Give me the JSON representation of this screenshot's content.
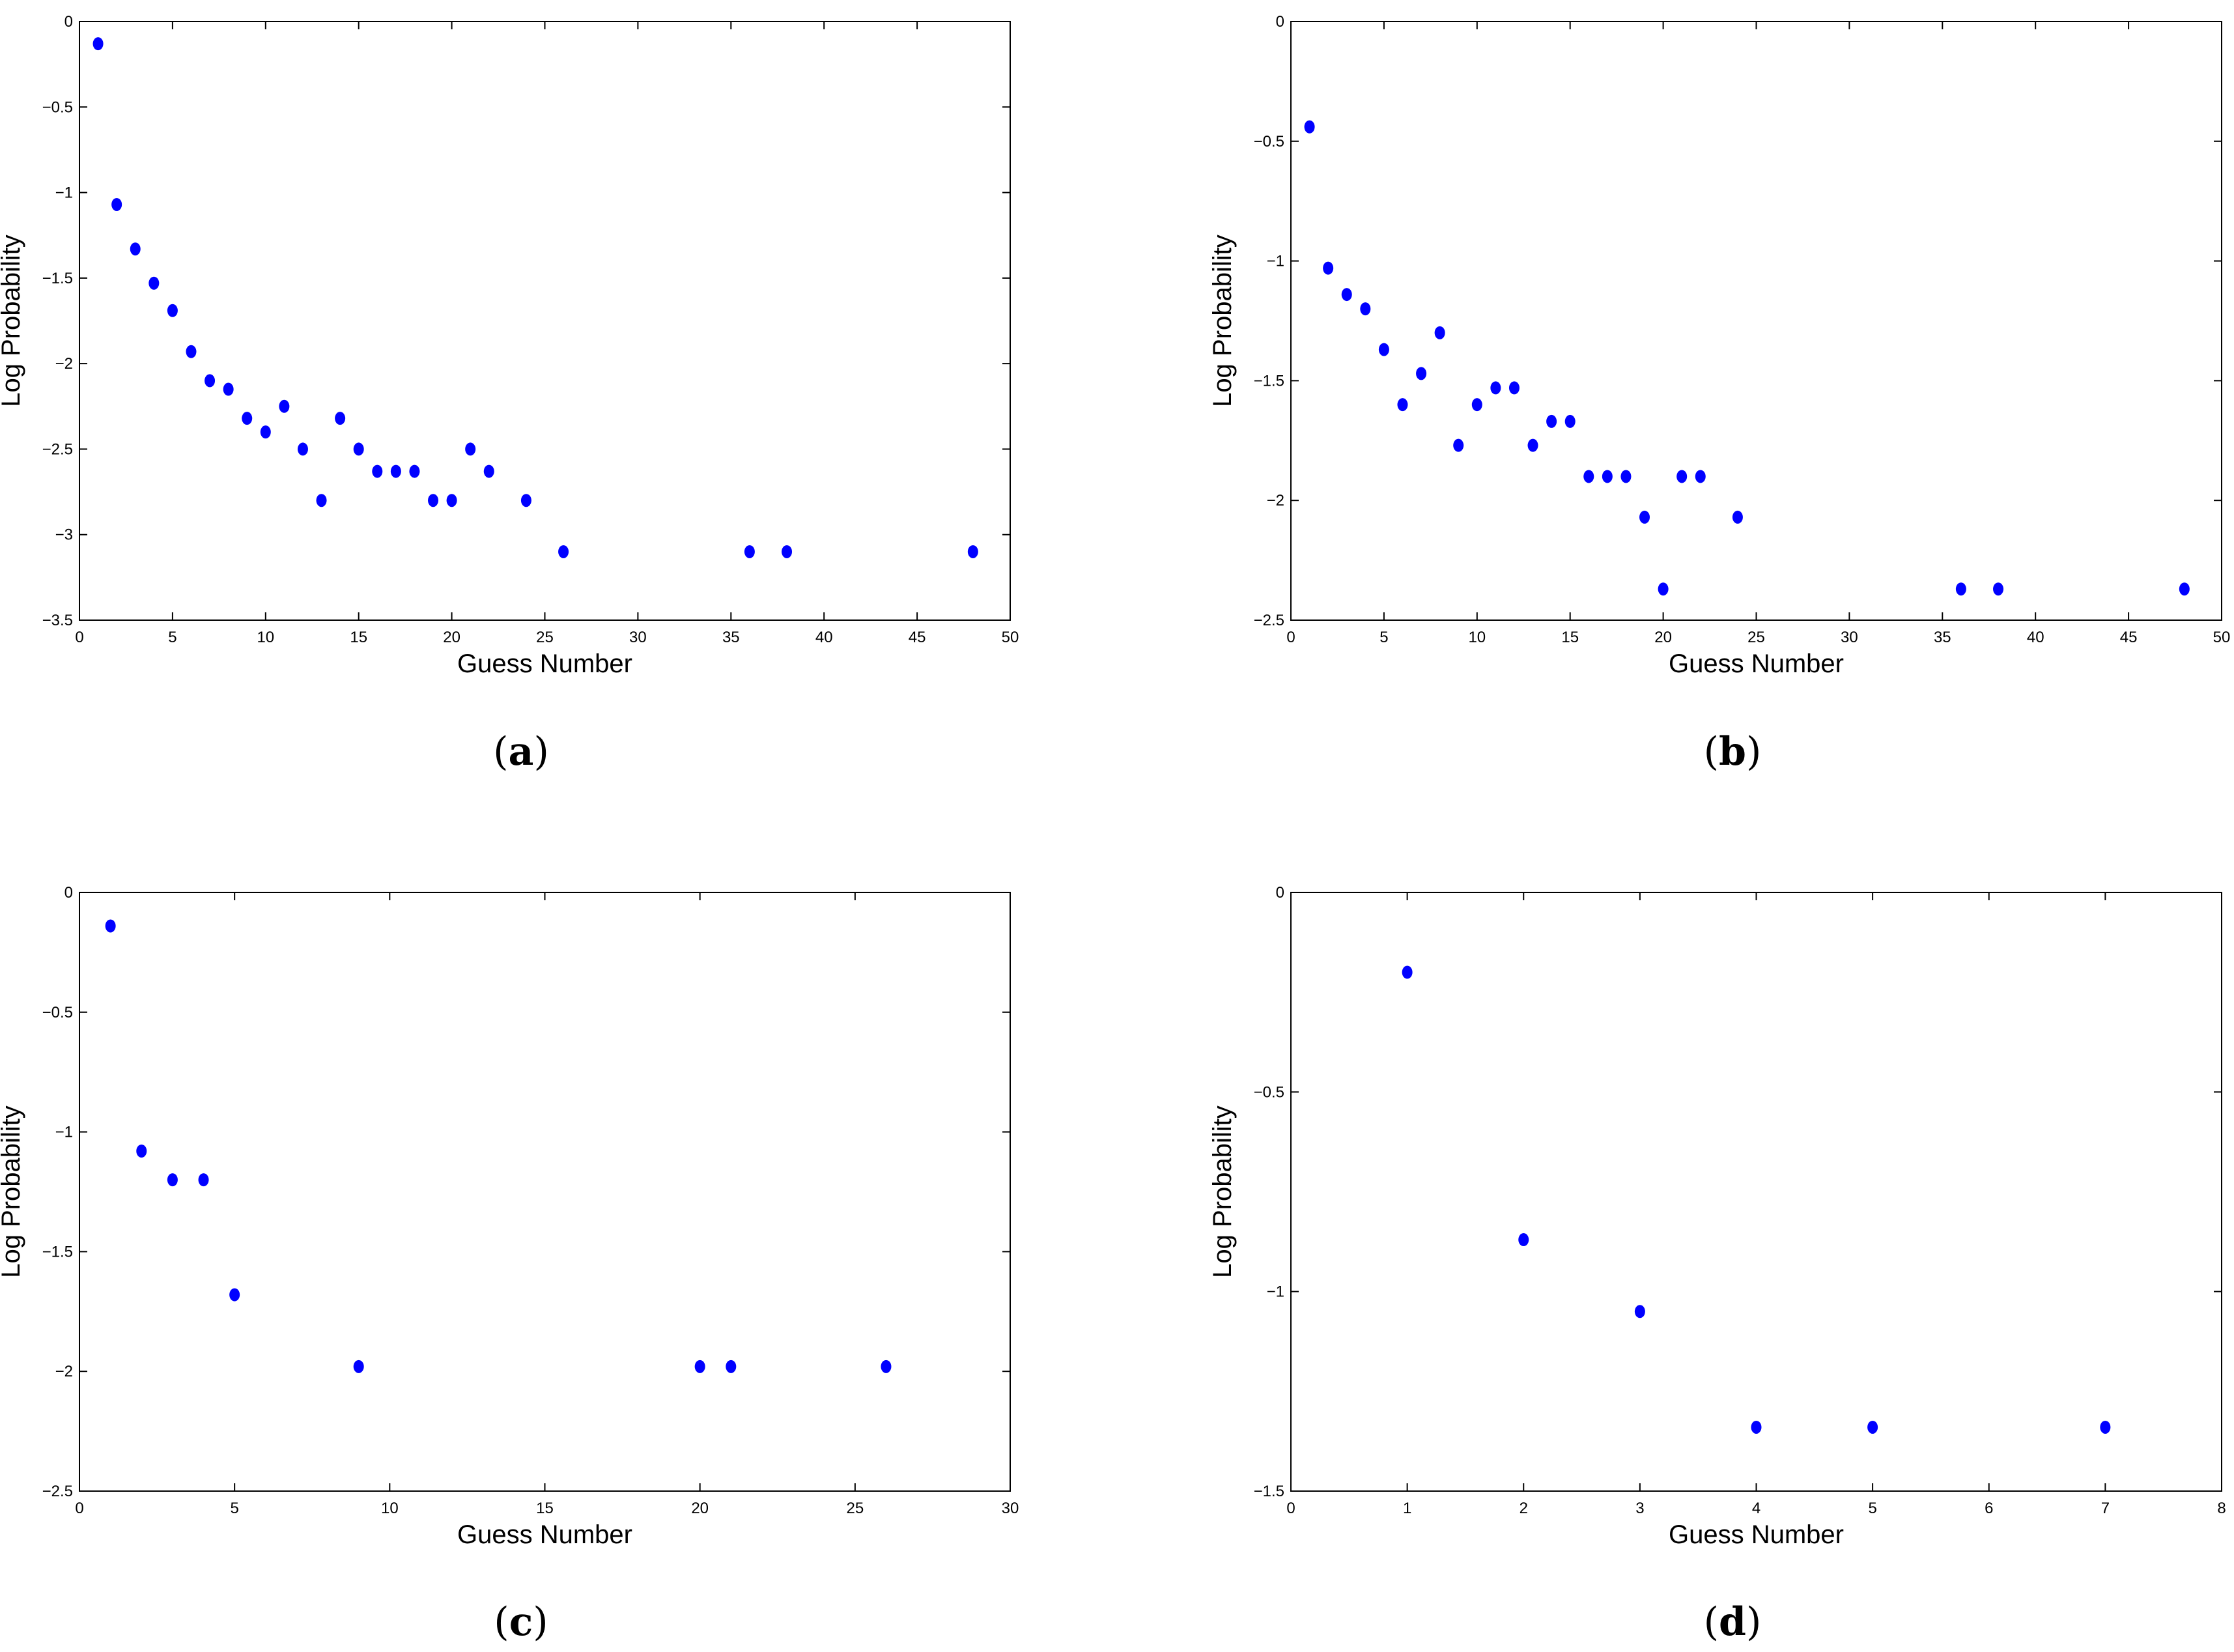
{
  "colors": {
    "marker": "#0000ff",
    "axis": "#000000",
    "background": "#ffffff"
  },
  "chart_data": [
    {
      "type": "scatter",
      "panel": "a",
      "caption": {
        "open": "(",
        "letter": "a",
        "close": ")"
      },
      "xlabel": "Guess Number",
      "ylabel": "Log Probability",
      "xlim": [
        0,
        50
      ],
      "ylim": [
        -3.5,
        0
      ],
      "xticks": [
        0,
        5,
        10,
        15,
        20,
        25,
        30,
        35,
        40,
        45,
        50
      ],
      "yticks": [
        0,
        -0.5,
        -1,
        -1.5,
        -2,
        -2.5,
        -3,
        -3.5
      ],
      "x": [
        1,
        2,
        3,
        4,
        5,
        6,
        7,
        8,
        9,
        10,
        11,
        12,
        13,
        14,
        15,
        16,
        17,
        18,
        19,
        20,
        21,
        22,
        24,
        26,
        36,
        38,
        48
      ],
      "y": [
        -0.13,
        -1.07,
        -1.33,
        -1.53,
        -1.69,
        -1.93,
        -2.1,
        -2.15,
        -2.32,
        -2.4,
        -2.25,
        -2.5,
        -2.8,
        -2.32,
        -2.5,
        -2.63,
        -2.63,
        -2.63,
        -2.8,
        -2.8,
        -2.5,
        -2.63,
        -2.8,
        -3.1,
        -3.1,
        -3.1,
        -3.1
      ]
    },
    {
      "type": "scatter",
      "panel": "b",
      "caption": {
        "open": "(",
        "letter": "b",
        "close": ")"
      },
      "xlabel": "Guess Number",
      "ylabel": "Log Probability",
      "xlim": [
        0,
        50
      ],
      "ylim": [
        -2.5,
        0
      ],
      "xticks": [
        0,
        5,
        10,
        15,
        20,
        25,
        30,
        35,
        40,
        45,
        50
      ],
      "yticks": [
        0,
        -0.5,
        -1,
        -1.5,
        -2,
        -2.5
      ],
      "x": [
        1,
        2,
        3,
        4,
        5,
        6,
        7,
        8,
        9,
        10,
        11,
        12,
        13,
        14,
        15,
        16,
        17,
        18,
        19,
        20,
        21,
        22,
        24,
        36,
        38,
        48
      ],
      "y": [
        -0.44,
        -1.03,
        -1.14,
        -1.2,
        -1.37,
        -1.6,
        -1.47,
        -1.3,
        -1.77,
        -1.6,
        -1.53,
        -1.53,
        -1.77,
        -1.67,
        -1.67,
        -1.9,
        -1.9,
        -1.9,
        -2.07,
        -2.37,
        -1.9,
        -1.9,
        -2.07,
        -2.37,
        -2.37,
        -2.37
      ]
    },
    {
      "type": "scatter",
      "panel": "c",
      "caption": {
        "open": "(",
        "letter": "c",
        "close": ")"
      },
      "xlabel": "Guess Number",
      "ylabel": "Log Probability",
      "xlim": [
        0,
        30
      ],
      "ylim": [
        -2.5,
        0
      ],
      "xticks": [
        0,
        5,
        10,
        15,
        20,
        25,
        30
      ],
      "yticks": [
        0,
        -0.5,
        -1,
        -1.5,
        -2,
        -2.5
      ],
      "x": [
        1,
        2,
        3,
        4,
        5,
        9,
        20,
        21,
        26
      ],
      "y": [
        -0.14,
        -1.08,
        -1.2,
        -1.2,
        -1.68,
        -1.98,
        -1.98,
        -1.98,
        -1.98
      ]
    },
    {
      "type": "scatter",
      "panel": "d",
      "caption": {
        "open": "(",
        "letter": "d",
        "close": ")"
      },
      "xlabel": "Guess Number",
      "ylabel": "Log Probability",
      "xlim": [
        0,
        8
      ],
      "ylim": [
        -1.5,
        0
      ],
      "xticks": [
        0,
        1,
        2,
        3,
        4,
        5,
        6,
        7,
        8
      ],
      "yticks": [
        0,
        -0.5,
        -1,
        -1.5
      ],
      "x": [
        1,
        2,
        3,
        4,
        5,
        7
      ],
      "y": [
        -0.2,
        -0.87,
        -1.05,
        -1.34,
        -1.34,
        -1.34
      ]
    }
  ]
}
